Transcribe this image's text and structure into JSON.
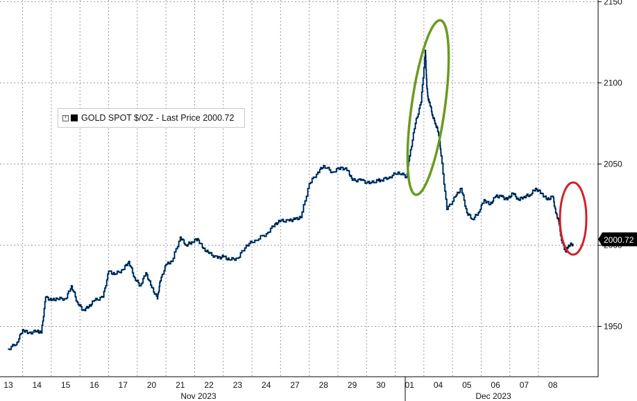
{
  "chart_data": {
    "type": "line",
    "title": "",
    "legend": {
      "series_name": "GOLD SPOT $/OZ",
      "separator": "-",
      "metric": "Last Price",
      "value": "2000.72",
      "placement": "upper-left"
    },
    "last_price_badge": "2000.72",
    "y_ticks": [
      "1950",
      "2000",
      "2050",
      "2100",
      "2150"
    ],
    "y_tick_values": [
      1950,
      2000,
      2050,
      2100,
      2150
    ],
    "ylim": [
      1919,
      2151
    ],
    "x_tick_labels": [
      "13",
      "14",
      "15",
      "16",
      "17",
      "20",
      "21",
      "22",
      "23",
      "24",
      "27",
      "28",
      "29",
      "30",
      "01",
      "04",
      "05",
      "06",
      "07",
      "08"
    ],
    "month_labels": [
      "Nov 2023",
      "Dec 2023"
    ],
    "grid": true,
    "colors": {
      "line_dark": "#000000",
      "line_blue": "#1f7ad6",
      "green_ellipse": "#6a9a1f",
      "red_ellipse": "#d0202a"
    },
    "annotations": [
      {
        "shape": "ellipse",
        "color": "green",
        "around": "spike on 01-04 Dec"
      },
      {
        "shape": "ellipse",
        "color": "red",
        "around": "drop on 08 Dec"
      }
    ],
    "series": [
      {
        "name": "GOLD SPOT $/OZ",
        "x": [
          0,
          0.3,
          0.5,
          0.7,
          1.0,
          1.15,
          1.3,
          1.5,
          1.7,
          2.0,
          2.2,
          2.4,
          2.6,
          2.8,
          3.0,
          3.3,
          3.5,
          3.7,
          4.0,
          4.2,
          4.4,
          4.6,
          4.8,
          5.0,
          5.2,
          5.3,
          5.5,
          5.7,
          6.0,
          6.2,
          6.4,
          6.6,
          6.8,
          7.0,
          7.3,
          7.5,
          7.7,
          8.0,
          8.3,
          8.6,
          9.0,
          9.3,
          9.5,
          9.8,
          10.0,
          10.2,
          10.5,
          10.8,
          11.0,
          11.3,
          11.6,
          11.85,
          12.0,
          12.3,
          12.6,
          12.9,
          13.0,
          13.3,
          13.6,
          13.9,
          14.0,
          14.2,
          14.4,
          14.55,
          14.6,
          14.65,
          14.7,
          14.8,
          14.9,
          15.0,
          15.05,
          15.1,
          15.3,
          15.6,
          15.8,
          16.0,
          16.2,
          16.4,
          16.6,
          16.8,
          17.0,
          17.2,
          17.4,
          17.6,
          17.8,
          18.0,
          18.2,
          18.4,
          18.6,
          18.8,
          19.0,
          19.1,
          19.2,
          19.3,
          19.45,
          19.55,
          19.7
        ],
        "values": [
          1936,
          1940,
          1948,
          1946,
          1947,
          1946,
          1968,
          1966,
          1967,
          1967,
          1975,
          1965,
          1960,
          1962,
          1966,
          1968,
          1984,
          1982,
          1985,
          1990,
          1980,
          1975,
          1983,
          1974,
          1967,
          1978,
          1988,
          1990,
          2005,
          2000,
          2002,
          2004,
          1998,
          1995,
          1992,
          1993,
          1991,
          1992,
          2000,
          2003,
          2007,
          2013,
          2015,
          2015,
          2016,
          2017,
          2038,
          2045,
          2049,
          2045,
          2048,
          2046,
          2040,
          2040,
          2038,
          2040,
          2040,
          2042,
          2045,
          2042,
          2055,
          2075,
          2088,
          2120,
          2098,
          2090,
          2088,
          2080,
          2075,
          2070,
          2065,
          2055,
          2022,
          2030,
          2035,
          2020,
          2016,
          2020,
          2028,
          2025,
          2030,
          2030,
          2028,
          2032,
          2028,
          2030,
          2031,
          2035,
          2032,
          2028,
          2030,
          2020,
          2015,
          2003,
          1996,
          2000,
          2000.72
        ]
      }
    ]
  }
}
